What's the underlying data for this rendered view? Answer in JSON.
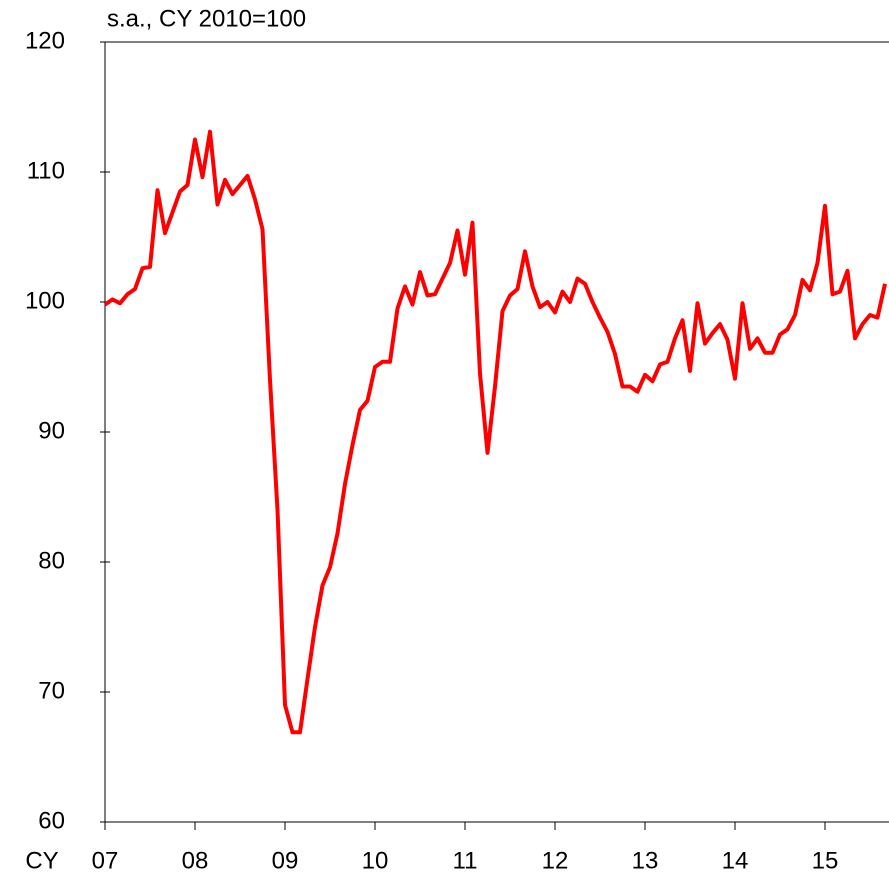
{
  "chart_data": {
    "type": "line",
    "title": "s.a., CY 2010=100",
    "x_label": "CY",
    "categories": [
      "07",
      null,
      null,
      null,
      null,
      null,
      null,
      null,
      null,
      null,
      null,
      null,
      "08",
      null,
      null,
      null,
      null,
      null,
      null,
      null,
      null,
      null,
      null,
      null,
      "09",
      null,
      null,
      null,
      null,
      null,
      null,
      null,
      null,
      null,
      null,
      null,
      "10",
      null,
      null,
      null,
      null,
      null,
      null,
      null,
      null,
      null,
      null,
      null,
      "11",
      null,
      null,
      null,
      null,
      null,
      null,
      null,
      null,
      null,
      null,
      null,
      "12",
      null,
      null,
      null,
      null,
      null,
      null,
      null,
      null,
      null,
      null,
      null,
      "13",
      null,
      null,
      null,
      null,
      null,
      null,
      null,
      null,
      null,
      null,
      null,
      "14",
      null,
      null,
      null,
      null,
      null,
      null,
      null,
      null,
      null,
      null,
      null,
      "15",
      null,
      null,
      null,
      null,
      null,
      null,
      null,
      null
    ],
    "series": [
      {
        "color": "#ff0000",
        "values": [
          99.8,
          100.2,
          99.9,
          100.6,
          101.0,
          102.6,
          102.7,
          108.6,
          105.3,
          106.9,
          108.5,
          109.0,
          112.5,
          109.6,
          113.1,
          107.5,
          109.4,
          108.3,
          109.0,
          109.7,
          107.9,
          105.6,
          94.0,
          84.0,
          69.0,
          66.9,
          66.9,
          71.0,
          75.0,
          78.2,
          79.6,
          82.2,
          86.0,
          89.0,
          91.7,
          92.4,
          95.0,
          95.4,
          95.4,
          99.5,
          101.2,
          99.8,
          102.3,
          100.5,
          100.6,
          101.8,
          103.0,
          105.5,
          102.1,
          106.1,
          94.5,
          88.4,
          93.5,
          99.3,
          100.5,
          101.0,
          103.9,
          101.2,
          99.6,
          100.0,
          99.2,
          100.8,
          100.0,
          101.8,
          101.4,
          100.0,
          98.8,
          97.7,
          96.0,
          93.5,
          93.5,
          93.1,
          94.4,
          93.9,
          95.2,
          95.4,
          97.2,
          98.6,
          94.7,
          99.9,
          96.8,
          97.6,
          98.3,
          97.1,
          94.1,
          99.9,
          96.4,
          97.2,
          96.1,
          96.1,
          97.5,
          97.9,
          99.0,
          101.7,
          100.9,
          103.0,
          107.4,
          100.6,
          100.8,
          102.4,
          97.2,
          98.3,
          99.0,
          98.8,
          101.4
        ]
      }
    ],
    "ylim": [
      60,
      120
    ],
    "yticks": [
      60,
      70,
      80,
      90,
      100,
      110,
      120
    ]
  }
}
